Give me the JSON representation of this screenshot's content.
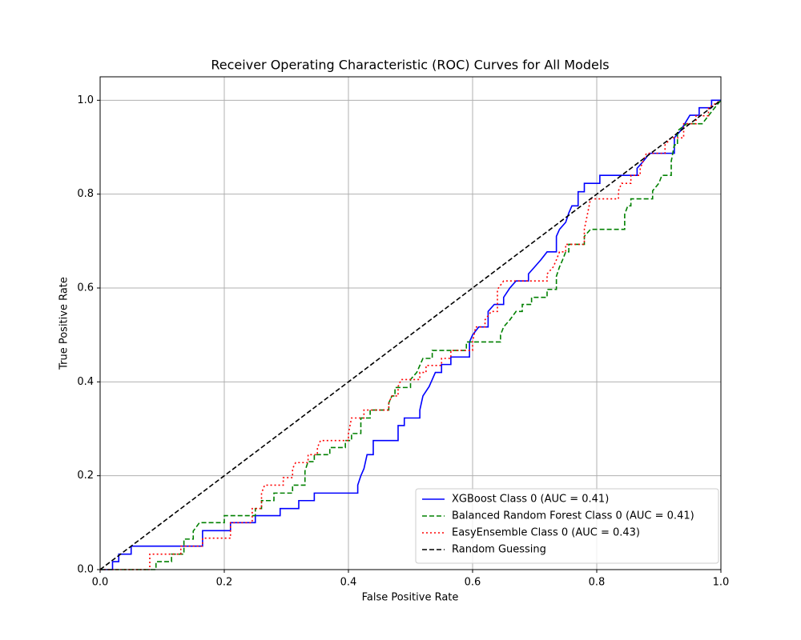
{
  "chart_data": {
    "type": "line",
    "title": "Receiver Operating Characteristic (ROC) Curves for All Models",
    "x_label": "False Positive Rate",
    "y_label": "True Positive Rate",
    "xlim": [
      0,
      1
    ],
    "ylim": [
      0,
      1.05
    ],
    "xticks": [
      {
        "value": 0,
        "label": "0.0"
      },
      0.2,
      0.4,
      0.6,
      0.8,
      {
        "value": 1,
        "label": "1.0"
      }
    ],
    "yticks": [
      {
        "value": 0,
        "label": "0.0"
      },
      0.2,
      0.4,
      0.6,
      0.8,
      {
        "value": 1,
        "label": "1.0"
      }
    ],
    "grid": true,
    "legend": "lower right",
    "series": [
      {
        "name": "XGBoost Class 0 (AUC = 0.41)",
        "color": "#0000ff",
        "linestyle": "solid",
        "x": [
          0,
          0.02,
          0.02,
          0.03,
          0.03,
          0.05,
          0.05,
          0.165,
          0.165,
          0.21,
          0.21,
          0.25,
          0.25,
          0.29,
          0.29,
          0.32,
          0.32,
          0.345,
          0.345,
          0.415,
          0.415,
          0.42,
          0.425,
          0.43,
          0.44,
          0.44,
          0.48,
          0.48,
          0.49,
          0.49,
          0.515,
          0.515,
          0.52,
          0.53,
          0.535,
          0.54,
          0.55,
          0.55,
          0.565,
          0.565,
          0.595,
          0.595,
          0.6,
          0.61,
          0.625,
          0.625,
          0.635,
          0.65,
          0.65,
          0.66,
          0.67,
          0.69,
          0.69,
          0.7,
          0.71,
          0.72,
          0.735,
          0.735,
          0.74,
          0.75,
          0.755,
          0.76,
          0.77,
          0.77,
          0.78,
          0.78,
          0.805,
          0.805,
          0.865,
          0.865,
          0.875,
          0.885,
          0.925,
          0.925,
          0.935,
          0.95,
          0.965,
          0.965,
          0.985,
          0.985,
          1
        ],
        "values": [
          0,
          0,
          0.017,
          0.017,
          0.033,
          0.033,
          0.05,
          0.05,
          0.083,
          0.083,
          0.1,
          0.1,
          0.115,
          0.115,
          0.13,
          0.13,
          0.147,
          0.147,
          0.163,
          0.163,
          0.18,
          0.2,
          0.215,
          0.245,
          0.245,
          0.275,
          0.275,
          0.307,
          0.307,
          0.323,
          0.323,
          0.34,
          0.37,
          0.39,
          0.405,
          0.42,
          0.42,
          0.437,
          0.437,
          0.453,
          0.453,
          0.485,
          0.5,
          0.517,
          0.517,
          0.55,
          0.565,
          0.565,
          0.58,
          0.6,
          0.615,
          0.615,
          0.63,
          0.645,
          0.66,
          0.677,
          0.677,
          0.71,
          0.725,
          0.74,
          0.76,
          0.775,
          0.775,
          0.805,
          0.805,
          0.823,
          0.823,
          0.84,
          0.84,
          0.855,
          0.87,
          0.887,
          0.887,
          0.92,
          0.935,
          0.968,
          0.968,
          0.984,
          0.984,
          1,
          1
        ]
      },
      {
        "name": "Balanced Random Forest Class 0 (AUC = 0.41)",
        "color": "#008000",
        "linestyle": "dashed",
        "x": [
          0,
          0.09,
          0.09,
          0.115,
          0.115,
          0.135,
          0.135,
          0.15,
          0.15,
          0.16,
          0.2,
          0.2,
          0.25,
          0.25,
          0.26,
          0.26,
          0.28,
          0.28,
          0.31,
          0.31,
          0.33,
          0.33,
          0.335,
          0.345,
          0.345,
          0.37,
          0.37,
          0.395,
          0.395,
          0.405,
          0.405,
          0.42,
          0.42,
          0.435,
          0.435,
          0.465,
          0.465,
          0.47,
          0.475,
          0.475,
          0.5,
          0.5,
          0.51,
          0.515,
          0.52,
          0.535,
          0.535,
          0.59,
          0.59,
          0.645,
          0.645,
          0.65,
          0.66,
          0.67,
          0.68,
          0.68,
          0.695,
          0.695,
          0.72,
          0.72,
          0.735,
          0.735,
          0.74,
          0.745,
          0.75,
          0.755,
          0.755,
          0.78,
          0.78,
          0.79,
          0.845,
          0.845,
          0.85,
          0.855,
          0.855,
          0.89,
          0.89,
          0.9,
          0.905,
          0.92,
          0.92,
          0.925,
          0.93,
          0.93,
          0.945,
          0.97,
          0.98,
          0.99,
          1
        ],
        "values": [
          0,
          0,
          0.017,
          0.017,
          0.033,
          0.033,
          0.065,
          0.065,
          0.082,
          0.1,
          0.1,
          0.115,
          0.115,
          0.13,
          0.13,
          0.147,
          0.147,
          0.163,
          0.163,
          0.18,
          0.18,
          0.21,
          0.23,
          0.23,
          0.245,
          0.245,
          0.26,
          0.26,
          0.275,
          0.275,
          0.29,
          0.29,
          0.323,
          0.323,
          0.34,
          0.34,
          0.355,
          0.37,
          0.37,
          0.388,
          0.388,
          0.405,
          0.42,
          0.435,
          0.45,
          0.45,
          0.467,
          0.467,
          0.485,
          0.485,
          0.5,
          0.517,
          0.532,
          0.55,
          0.55,
          0.565,
          0.565,
          0.58,
          0.58,
          0.597,
          0.597,
          0.625,
          0.645,
          0.66,
          0.677,
          0.677,
          0.693,
          0.693,
          0.71,
          0.725,
          0.725,
          0.757,
          0.775,
          0.775,
          0.79,
          0.79,
          0.807,
          0.823,
          0.84,
          0.84,
          0.87,
          0.905,
          0.905,
          0.935,
          0.95,
          0.95,
          0.967,
          0.984,
          1
        ]
      },
      {
        "name": "EasyEnsemble Class 0 (AUC = 0.43)",
        "color": "#ff0000",
        "linestyle": "dotted",
        "x": [
          0,
          0.08,
          0.08,
          0.13,
          0.13,
          0.165,
          0.165,
          0.21,
          0.21,
          0.245,
          0.245,
          0.26,
          0.26,
          0.265,
          0.295,
          0.295,
          0.31,
          0.31,
          0.315,
          0.335,
          0.335,
          0.35,
          0.35,
          0.355,
          0.4,
          0.4,
          0.405,
          0.425,
          0.425,
          0.465,
          0.465,
          0.47,
          0.48,
          0.48,
          0.485,
          0.515,
          0.515,
          0.525,
          0.525,
          0.55,
          0.55,
          0.565,
          0.565,
          0.6,
          0.6,
          0.605,
          0.62,
          0.62,
          0.63,
          0.64,
          0.64,
          0.65,
          0.72,
          0.72,
          0.73,
          0.735,
          0.74,
          0.75,
          0.75,
          0.78,
          0.78,
          0.785,
          0.79,
          0.835,
          0.835,
          0.84,
          0.855,
          0.855,
          0.87,
          0.87,
          0.88,
          0.91,
          0.91,
          0.92,
          0.94,
          0.94,
          0.96,
          0.96,
          0.98,
          0.98,
          1
        ],
        "values": [
          0,
          0,
          0.033,
          0.033,
          0.05,
          0.05,
          0.067,
          0.067,
          0.1,
          0.1,
          0.13,
          0.13,
          0.163,
          0.18,
          0.18,
          0.196,
          0.196,
          0.215,
          0.228,
          0.228,
          0.245,
          0.245,
          0.26,
          0.275,
          0.275,
          0.29,
          0.323,
          0.323,
          0.34,
          0.34,
          0.355,
          0.37,
          0.37,
          0.39,
          0.405,
          0.405,
          0.42,
          0.42,
          0.435,
          0.435,
          0.45,
          0.45,
          0.467,
          0.467,
          0.485,
          0.517,
          0.517,
          0.532,
          0.55,
          0.55,
          0.597,
          0.615,
          0.615,
          0.63,
          0.645,
          0.66,
          0.677,
          0.677,
          0.693,
          0.693,
          0.725,
          0.757,
          0.79,
          0.79,
          0.807,
          0.823,
          0.823,
          0.84,
          0.84,
          0.855,
          0.887,
          0.887,
          0.905,
          0.92,
          0.92,
          0.95,
          0.95,
          0.967,
          0.967,
          0.984,
          1
        ]
      },
      {
        "name": "Random Guessing",
        "color": "#000000",
        "linestyle": "dashed",
        "x": [
          0,
          1
        ],
        "values": [
          0,
          1
        ]
      }
    ]
  }
}
